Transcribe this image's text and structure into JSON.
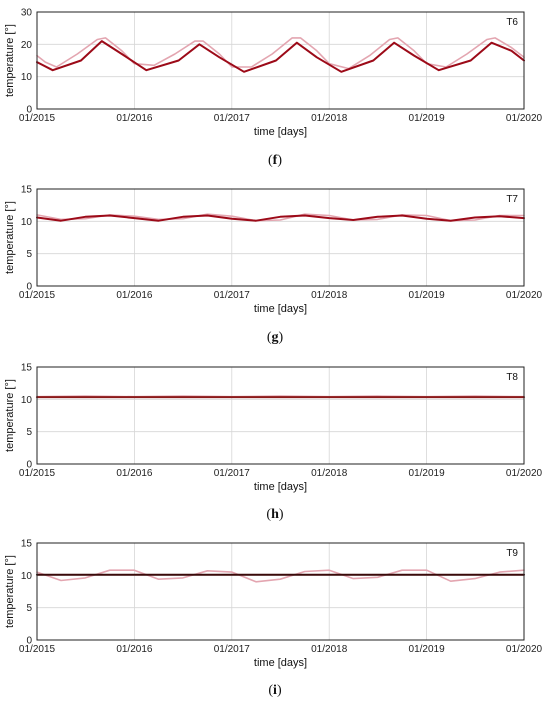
{
  "chart_data": [
    {
      "type": "line",
      "panel_label": "T6",
      "caption_open": "(",
      "caption_letter": "f",
      "caption_close": ")",
      "xlabel": "time [days]",
      "ylabel": "temperature [°]",
      "xlim": [
        "2015-01-01",
        "2020-01-01"
      ],
      "ylim": [
        0,
        30
      ],
      "yticks": [
        0,
        10,
        20,
        30
      ],
      "xticks": [
        "01/2015",
        "01/2016",
        "01/2017",
        "01/2018",
        "01/2019",
        "01/2020"
      ],
      "grid": true,
      "series": [
        {
          "color": "#e3a5b0",
          "x": [
            "2015-01-01",
            "2015-02-01",
            "2015-03-15",
            "2015-06-01",
            "2015-08-15",
            "2015-09-15",
            "2015-11-15",
            "2016-01-01",
            "2016-03-15",
            "2016-06-01",
            "2016-08-15",
            "2016-09-15",
            "2016-11-15",
            "2017-01-01",
            "2017-03-15",
            "2017-06-01",
            "2017-08-15",
            "2017-09-15",
            "2017-11-15",
            "2018-01-01",
            "2018-03-15",
            "2018-06-01",
            "2018-08-15",
            "2018-09-15",
            "2018-11-15",
            "2019-01-01",
            "2019-03-15",
            "2019-06-01",
            "2019-08-15",
            "2019-09-15",
            "2019-11-15",
            "2020-01-01"
          ],
          "y": [
            16.5,
            14.5,
            13,
            17,
            21.5,
            22,
            18,
            14,
            13.5,
            17,
            21,
            21,
            17,
            13,
            13,
            17,
            22,
            22,
            18,
            14,
            12.5,
            16.5,
            21.5,
            22,
            18,
            14,
            13,
            17,
            21.5,
            22,
            19,
            16
          ]
        },
        {
          "color": "#9c0a18",
          "x": [
            "2015-01-01",
            "2015-03-01",
            "2015-06-15",
            "2015-09-01",
            "2015-11-15",
            "2016-02-15",
            "2016-06-15",
            "2016-09-01",
            "2016-11-15",
            "2017-02-15",
            "2017-06-15",
            "2017-09-01",
            "2017-11-15",
            "2018-02-15",
            "2018-06-15",
            "2018-09-01",
            "2018-11-15",
            "2019-02-15",
            "2019-06-15",
            "2019-09-01",
            "2019-11-15",
            "2020-01-01"
          ],
          "y": [
            14.5,
            12,
            15,
            21,
            17,
            12,
            15,
            20,
            16,
            11.5,
            15,
            20.5,
            16,
            11.5,
            15,
            20.5,
            16.5,
            12,
            15,
            20.5,
            18,
            15
          ]
        }
      ]
    },
    {
      "type": "line",
      "panel_label": "T7",
      "caption_open": "(",
      "caption_letter": "g",
      "caption_close": ")",
      "xlabel": "time [days]",
      "ylabel": "temperature [°]",
      "xlim": [
        "2015-01-01",
        "2020-01-01"
      ],
      "ylim": [
        0,
        15
      ],
      "yticks": [
        0,
        5,
        10,
        15
      ],
      "xticks": [
        "01/2015",
        "01/2016",
        "01/2017",
        "01/2018",
        "01/2019",
        "01/2020"
      ],
      "grid": true,
      "series": [
        {
          "color": "#e3a5b0",
          "x": [
            "2015-01-01",
            "2015-04-01",
            "2015-07-01",
            "2015-10-01",
            "2016-01-01",
            "2016-04-01",
            "2016-07-01",
            "2016-10-01",
            "2017-01-01",
            "2017-04-01",
            "2017-07-01",
            "2017-10-01",
            "2018-01-01",
            "2018-04-01",
            "2018-07-01",
            "2018-10-01",
            "2019-01-01",
            "2019-04-01",
            "2019-07-01",
            "2019-10-01",
            "2020-01-01"
          ],
          "y": [
            11,
            10.3,
            10.4,
            11,
            10.8,
            10.3,
            10.4,
            11.1,
            10.8,
            10.1,
            10.2,
            11.1,
            10.9,
            10.2,
            10.3,
            11,
            10.9,
            10.1,
            10.2,
            10.9,
            10.9
          ]
        },
        {
          "color": "#9c0a18",
          "x": [
            "2015-01-01",
            "2015-04-01",
            "2015-07-01",
            "2015-10-01",
            "2016-01-01",
            "2016-04-01",
            "2016-07-01",
            "2016-10-01",
            "2017-01-01",
            "2017-04-01",
            "2017-07-01",
            "2017-10-01",
            "2018-01-01",
            "2018-04-01",
            "2018-07-01",
            "2018-10-01",
            "2019-01-01",
            "2019-04-01",
            "2019-07-01",
            "2019-10-01",
            "2020-01-01"
          ],
          "y": [
            10.6,
            10.1,
            10.7,
            10.9,
            10.5,
            10.1,
            10.7,
            10.9,
            10.4,
            10.1,
            10.7,
            10.9,
            10.5,
            10.2,
            10.7,
            10.9,
            10.4,
            10.1,
            10.6,
            10.8,
            10.5
          ]
        }
      ]
    },
    {
      "type": "line",
      "panel_label": "T8",
      "caption_open": "(",
      "caption_letter": "h",
      "caption_close": ")",
      "xlabel": "time [days]",
      "ylabel": "temperature [°]",
      "xlim": [
        "2015-01-01",
        "2020-01-01"
      ],
      "ylim": [
        0,
        15
      ],
      "yticks": [
        0,
        5,
        10,
        15
      ],
      "xticks": [
        "01/2015",
        "01/2016",
        "01/2017",
        "01/2018",
        "01/2019",
        "01/2020"
      ],
      "grid": true,
      "series": [
        {
          "color": "#e3a5b0",
          "x": [
            "2015-01-01",
            "2015-07-01",
            "2016-01-01",
            "2016-07-01",
            "2017-01-01",
            "2017-07-01",
            "2018-01-01",
            "2018-07-01",
            "2019-01-01",
            "2019-07-01",
            "2020-01-01"
          ],
          "y": [
            10.4,
            10.5,
            10.4,
            10.5,
            10.4,
            10.5,
            10.4,
            10.5,
            10.4,
            10.5,
            10.4
          ]
        },
        {
          "color": "#8b1a1a",
          "x": [
            "2015-01-01",
            "2020-01-01"
          ],
          "y": [
            10.35,
            10.35
          ]
        }
      ]
    },
    {
      "type": "line",
      "panel_label": "T9",
      "caption_open": "(",
      "caption_letter": "i",
      "caption_close": ")",
      "xlabel": "time [days]",
      "ylabel": "temperature [°]",
      "xlim": [
        "2015-01-01",
        "2020-01-01"
      ],
      "ylim": [
        0,
        15
      ],
      "yticks": [
        0,
        5,
        10,
        15
      ],
      "xticks": [
        "01/2015",
        "01/2016",
        "01/2017",
        "01/2018",
        "01/2019",
        "01/2020"
      ],
      "grid": true,
      "series": [
        {
          "color": "#e3a5b0",
          "x": [
            "2015-01-01",
            "2015-04-01",
            "2015-07-01",
            "2015-10-01",
            "2016-01-01",
            "2016-04-01",
            "2016-07-01",
            "2016-10-01",
            "2017-01-01",
            "2017-04-01",
            "2017-07-01",
            "2017-10-01",
            "2018-01-01",
            "2018-04-01",
            "2018-07-01",
            "2018-10-01",
            "2019-01-01",
            "2019-04-01",
            "2019-07-01",
            "2019-10-01",
            "2020-01-01"
          ],
          "y": [
            10.5,
            9.2,
            9.6,
            10.8,
            10.8,
            9.4,
            9.6,
            10.7,
            10.5,
            9.0,
            9.4,
            10.6,
            10.8,
            9.5,
            9.7,
            10.8,
            10.8,
            9.1,
            9.5,
            10.5,
            10.8
          ]
        },
        {
          "color": "#3a0a0a",
          "x": [
            "2015-01-01",
            "2020-01-01"
          ],
          "y": [
            10.1,
            10.1
          ]
        }
      ]
    }
  ]
}
